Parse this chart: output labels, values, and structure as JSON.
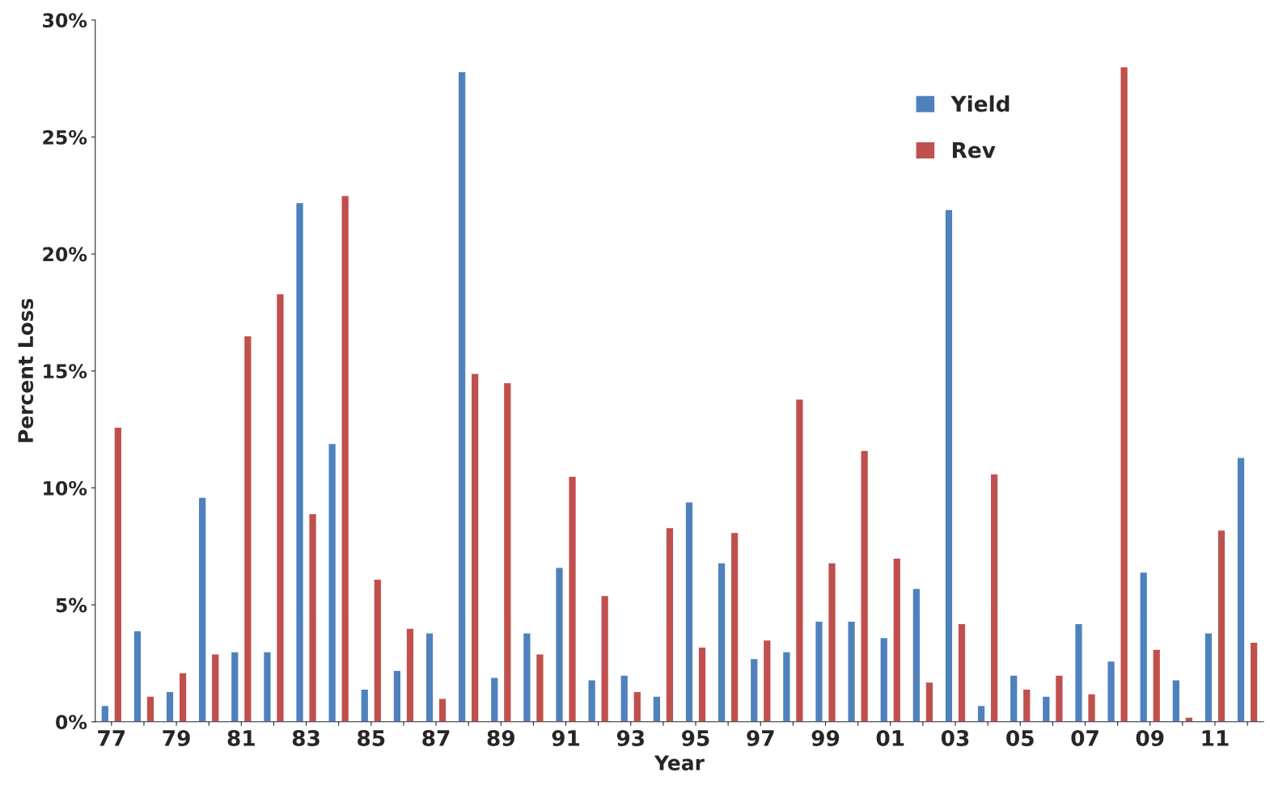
{
  "chart_data": {
    "type": "bar",
    "xlabel": "Year",
    "ylabel": "Percent Loss",
    "categories": [
      "77",
      null,
      "79",
      null,
      "81",
      null,
      "83",
      null,
      "85",
      null,
      "87",
      null,
      "89",
      null,
      "91",
      null,
      "93",
      null,
      "95",
      null,
      "97",
      null,
      "99",
      null,
      "01",
      null,
      "03",
      null,
      "05",
      null,
      "07",
      null,
      "09",
      null,
      "11",
      null
    ],
    "series": [
      {
        "name": "Yield",
        "color": "#4f81bd",
        "values": [
          0.7,
          3.9,
          1.3,
          9.6,
          3.0,
          3.0,
          22.2,
          11.9,
          1.4,
          2.2,
          3.8,
          27.8,
          1.9,
          3.8,
          6.6,
          1.8,
          2.0,
          1.1,
          9.4,
          6.8,
          2.7,
          3.0,
          4.3,
          4.3,
          3.6,
          5.7,
          21.9,
          0.7,
          2.0,
          1.1,
          4.2,
          2.6,
          6.4,
          1.8,
          3.8,
          11.3
        ]
      },
      {
        "name": "Rev",
        "color": "#c0504d",
        "values": [
          12.6,
          1.1,
          2.1,
          2.9,
          16.5,
          18.3,
          8.9,
          22.5,
          6.1,
          4.0,
          1.0,
          14.9,
          14.5,
          2.9,
          10.5,
          5.4,
          1.3,
          8.3,
          3.2,
          8.1,
          3.5,
          13.8,
          6.8,
          11.6,
          7.0,
          1.7,
          4.2,
          10.6,
          1.4,
          2.0,
          1.2,
          28.0,
          3.1,
          0.2,
          8.2,
          3.4
        ]
      }
    ],
    "ylim": [
      0,
      30
    ],
    "yticks": [
      {
        "value": 0,
        "label": "0%"
      },
      {
        "value": 5,
        "label": "5%"
      },
      {
        "value": 10,
        "label": "10%"
      },
      {
        "value": 15,
        "label": "15%"
      },
      {
        "value": 20,
        "label": "20%"
      },
      {
        "value": 25,
        "label": "25%"
      },
      {
        "value": 30,
        "label": "30%"
      }
    ],
    "grid": false,
    "legend": "top right"
  }
}
